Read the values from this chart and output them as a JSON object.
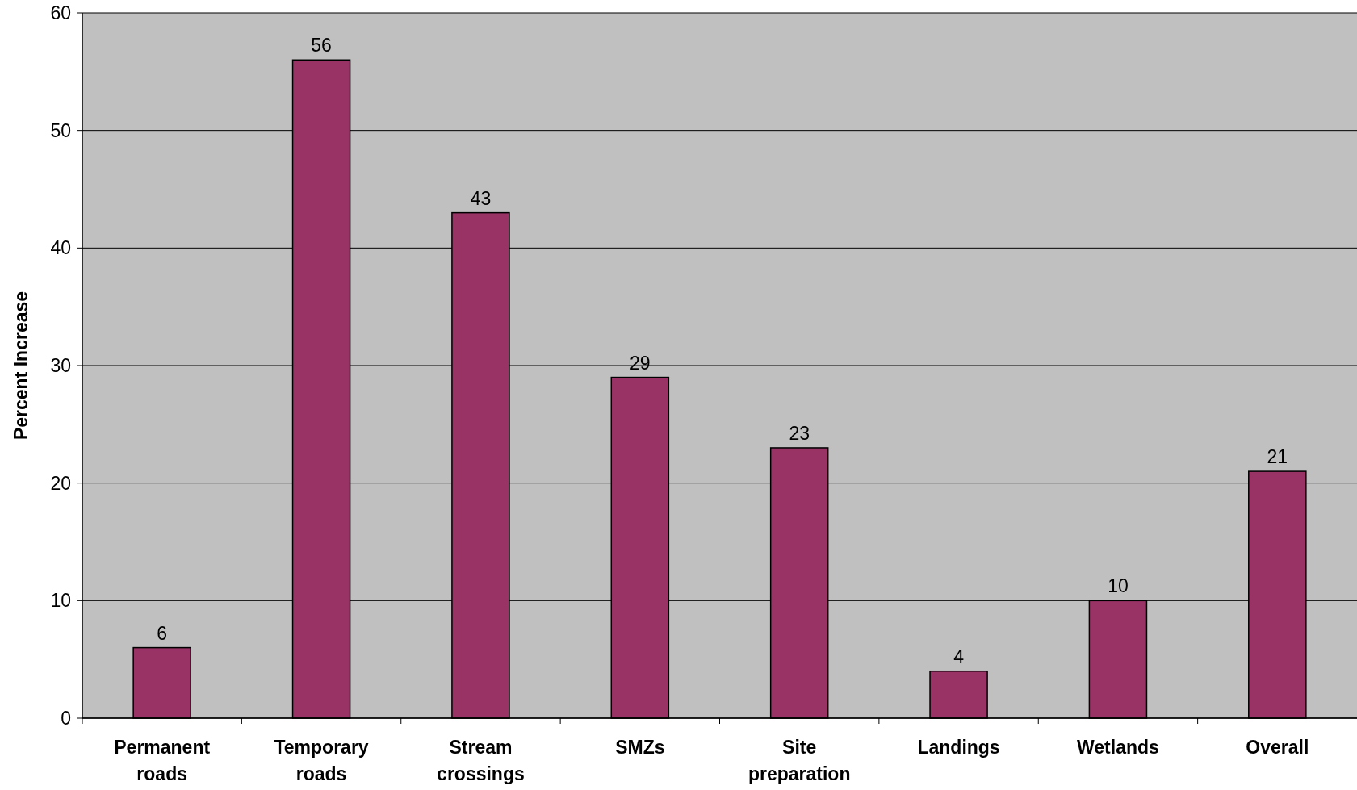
{
  "chart_data": {
    "type": "bar",
    "ylabel": "Percent Increase",
    "categories": [
      "Permanent roads",
      "Temporary roads",
      "Stream crossings",
      "SMZs",
      "Site preparation",
      "Landings",
      "Wetlands",
      "Overall"
    ],
    "values": [
      6,
      56,
      43,
      29,
      23,
      4,
      10,
      21
    ],
    "color": "#993366",
    "ylim": [
      0,
      60
    ],
    "yticks": [
      0,
      10,
      20,
      30,
      40,
      50,
      60
    ],
    "grid": "y",
    "data_labels": true
  }
}
